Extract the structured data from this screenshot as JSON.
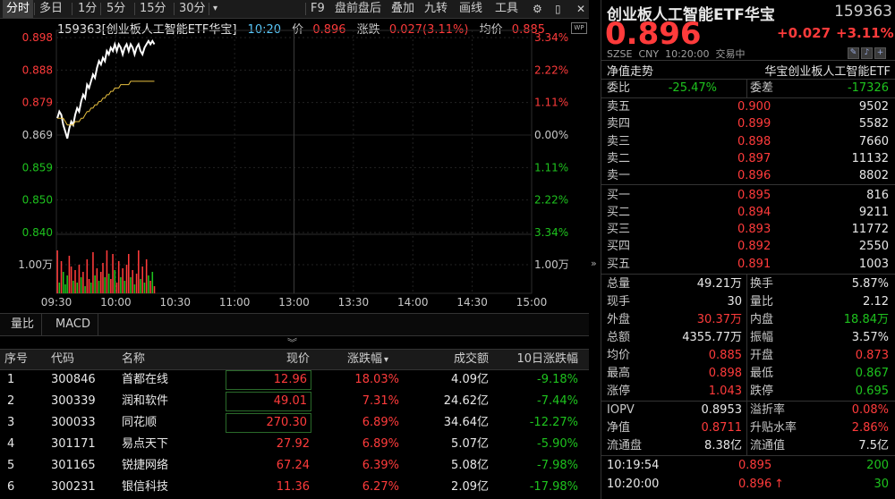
{
  "toolbar": {
    "items": [
      "分时",
      "多日",
      "1分",
      "5分",
      "15分",
      "30分",
      "F9",
      "盘前盘后",
      "叠加",
      "九转",
      "画线",
      "工具"
    ],
    "more_caret": "▾"
  },
  "chart_header": {
    "code_name": "159363[创业板人工智能ETF华宝]",
    "time": "10:20",
    "price_label": "价",
    "price": "0.896",
    "change_label": "涨跌",
    "change": "0.027(3.11%)",
    "avg_label": "均价",
    "avg": "0.885",
    "wp_badge": "WP"
  },
  "axis": {
    "price_ticks": [
      "0.898",
      "0.888",
      "0.879",
      "0.869",
      "0.859",
      "0.850",
      "0.840"
    ],
    "pct_ticks": [
      "3.34%",
      "2.22%",
      "1.11%",
      "0.00%",
      "1.11%",
      "2.22%",
      "3.34%"
    ],
    "vol_label_left": "1.00万",
    "vol_label_right": "1.00万",
    "time_ticks": [
      "09:30",
      "10:00",
      "10:30",
      "11:00",
      "13:00",
      "13:30",
      "14:00",
      "14:30",
      "15:00"
    ]
  },
  "chart_data": {
    "type": "line",
    "xlabel": "",
    "ylabel": "",
    "ylim": [
      0.84,
      0.898
    ],
    "prev_close": 0.869,
    "series": [
      {
        "values": [
          0.874,
          0.876,
          0.875,
          0.872,
          0.87,
          0.868,
          0.871,
          0.873,
          0.872,
          0.875,
          0.877,
          0.876,
          0.879,
          0.881,
          0.88,
          0.884,
          0.883,
          0.885,
          0.887,
          0.886,
          0.889,
          0.891,
          0.89,
          0.892,
          0.891,
          0.894,
          0.893,
          0.895,
          0.894,
          0.896,
          0.894,
          0.896,
          0.895,
          0.893,
          0.895,
          0.896,
          0.894,
          0.896,
          0.895,
          0.893,
          0.895,
          0.896,
          0.894,
          0.893,
          0.895,
          0.896,
          0.897,
          0.896,
          0.897,
          0.896
        ]
      },
      {
        "values": [
          0.874,
          0.874,
          0.874,
          0.874,
          0.873,
          0.872,
          0.872,
          0.872,
          0.872,
          0.873,
          0.873,
          0.873,
          0.874,
          0.874,
          0.875,
          0.876,
          0.876,
          0.877,
          0.877,
          0.878,
          0.878,
          0.879,
          0.879,
          0.88,
          0.88,
          0.881,
          0.881,
          0.882,
          0.882,
          0.883,
          0.883,
          0.883,
          0.884,
          0.884,
          0.884,
          0.884,
          0.884,
          0.885,
          0.885,
          0.885,
          0.885,
          0.885,
          0.885,
          0.885,
          0.885,
          0.885,
          0.885,
          0.885,
          0.885,
          0.885
        ]
      }
    ],
    "volume": {
      "unit": "万",
      "values": [
        2.4,
        0.6,
        1.8,
        1.2,
        0.5,
        1.0,
        2.1,
        1.5,
        0.7,
        1.3,
        0.6,
        1.6,
        0.9,
        1.2,
        0.4,
        1.9,
        0.8,
        0.6,
        2.3,
        1.0,
        1.4,
        0.7,
        1.2,
        1.7,
        0.9,
        2.4,
        1.1,
        0.8,
        2.2,
        1.3,
        0.6,
        1.8,
        0.9,
        1.4,
        0.7,
        1.6,
        2.2,
        0.9,
        1.3,
        0.5,
        1.1,
        2.4,
        0.8,
        1.5,
        0.6,
        1.9,
        1.0,
        0.7,
        1.2,
        0.4
      ],
      "up": [
        1,
        0,
        1,
        0,
        0,
        0,
        1,
        1,
        0,
        1,
        0,
        1,
        0,
        1,
        0,
        1,
        1,
        0,
        1,
        0,
        1,
        0,
        1,
        1,
        0,
        1,
        0,
        1,
        1,
        0,
        1,
        1,
        0,
        1,
        0,
        1,
        1,
        0,
        1,
        0,
        1,
        1,
        0,
        1,
        0,
        1,
        0,
        1,
        0,
        1
      ]
    },
    "colors": {
      "price": "#ffffff",
      "avg": "#e8c040",
      "up": "#ff3b3b",
      "down": "#1ec31e"
    }
  },
  "subtabs": [
    "量比",
    "MACD"
  ],
  "expand_icon": "︾",
  "table": {
    "headers": [
      "序号",
      "代码",
      "名称",
      "现价",
      "涨跌幅",
      "成交额",
      "10日涨跌幅"
    ],
    "sort_caret": "▾",
    "rows": [
      [
        "1",
        "300846",
        "首都在线",
        "12.96",
        "18.03%",
        "4.09亿",
        "-9.18%"
      ],
      [
        "2",
        "300339",
        "润和软件",
        "49.01",
        "7.31%",
        "24.62亿",
        "-7.44%"
      ],
      [
        "3",
        "300033",
        "同花顺",
        "270.30",
        "6.89%",
        "34.64亿",
        "-12.27%"
      ],
      [
        "4",
        "301171",
        "易点天下",
        "27.92",
        "6.89%",
        "5.07亿",
        "-5.90%"
      ],
      [
        "5",
        "301165",
        "锐捷网络",
        "67.24",
        "6.39%",
        "5.08亿",
        "-7.98%"
      ],
      [
        "6",
        "300231",
        "银信科技",
        "11.36",
        "6.27%",
        "2.09亿",
        "-17.98%"
      ]
    ]
  },
  "panel": {
    "title": "创业板人工智能ETF华宝",
    "code": "159363",
    "price": "0.896",
    "change": "+0.027",
    "change_pct": "+3.11%",
    "sub_info": "SZSE  CNY  10:20:00  交易中",
    "nav_label": "净值走势",
    "fund_name": "华宝创业板人工智能ETF",
    "ratio_label": "委比",
    "ratio": "-25.47%",
    "diff_label": "委差",
    "diff": "-17326",
    "asks": [
      {
        "label": "卖五",
        "price": "0.900",
        "vol": "9502"
      },
      {
        "label": "卖四",
        "price": "0.899",
        "vol": "5582"
      },
      {
        "label": "卖三",
        "price": "0.898",
        "vol": "7660"
      },
      {
        "label": "卖二",
        "price": "0.897",
        "vol": "11132"
      },
      {
        "label": "卖一",
        "price": "0.896",
        "vol": "8802"
      }
    ],
    "bids": [
      {
        "label": "买一",
        "price": "0.895",
        "vol": "816"
      },
      {
        "label": "买二",
        "price": "0.894",
        "vol": "9211"
      },
      {
        "label": "买三",
        "price": "0.893",
        "vol": "11772"
      },
      {
        "label": "买四",
        "price": "0.892",
        "vol": "2550"
      },
      {
        "label": "买五",
        "price": "0.891",
        "vol": "1003"
      }
    ],
    "stats": [
      {
        "l1": "总量",
        "v1": "49.21万",
        "c1": "white",
        "l2": "换手",
        "v2": "5.87%",
        "c2": "white"
      },
      {
        "l1": "现手",
        "v1": "30",
        "c1": "white",
        "l2": "量比",
        "v2": "2.12",
        "c2": "white"
      },
      {
        "l1": "外盘",
        "v1": "30.37万",
        "c1": "red",
        "l2": "内盘",
        "v2": "18.84万",
        "c2": "green"
      },
      {
        "l1": "总额",
        "v1": "4355.77万",
        "c1": "white",
        "l2": "振幅",
        "v2": "3.57%",
        "c2": "white"
      },
      {
        "l1": "均价",
        "v1": "0.885",
        "c1": "red",
        "l2": "开盘",
        "v2": "0.873",
        "c2": "red"
      },
      {
        "l1": "最高",
        "v1": "0.898",
        "c1": "red",
        "l2": "最低",
        "v2": "0.867",
        "c2": "green"
      },
      {
        "l1": "涨停",
        "v1": "1.043",
        "c1": "red",
        "l2": "跌停",
        "v2": "0.695",
        "c2": "green"
      }
    ],
    "iopv": [
      {
        "l1": "IOPV",
        "v1": "0.8953",
        "c1": "white",
        "l2": "溢折率",
        "v2": "0.08%",
        "c2": "red"
      },
      {
        "l1": "净值",
        "v1": "0.8711",
        "c1": "red",
        "l2": "升贴水率",
        "v2": "2.86%",
        "c2": "red"
      },
      {
        "l1": "流通盘",
        "v1": "8.38亿",
        "c1": "white",
        "l2": "流通值",
        "v2": "7.5亿",
        "c2": "white"
      }
    ],
    "ticks": [
      {
        "time": "10:19:54",
        "price": "0.895",
        "vol": "200",
        "arrow": ""
      },
      {
        "time": "10:20:00",
        "price": "0.896",
        "vol": "30",
        "arrow": "↑"
      }
    ],
    "collapse_icon": "»"
  }
}
